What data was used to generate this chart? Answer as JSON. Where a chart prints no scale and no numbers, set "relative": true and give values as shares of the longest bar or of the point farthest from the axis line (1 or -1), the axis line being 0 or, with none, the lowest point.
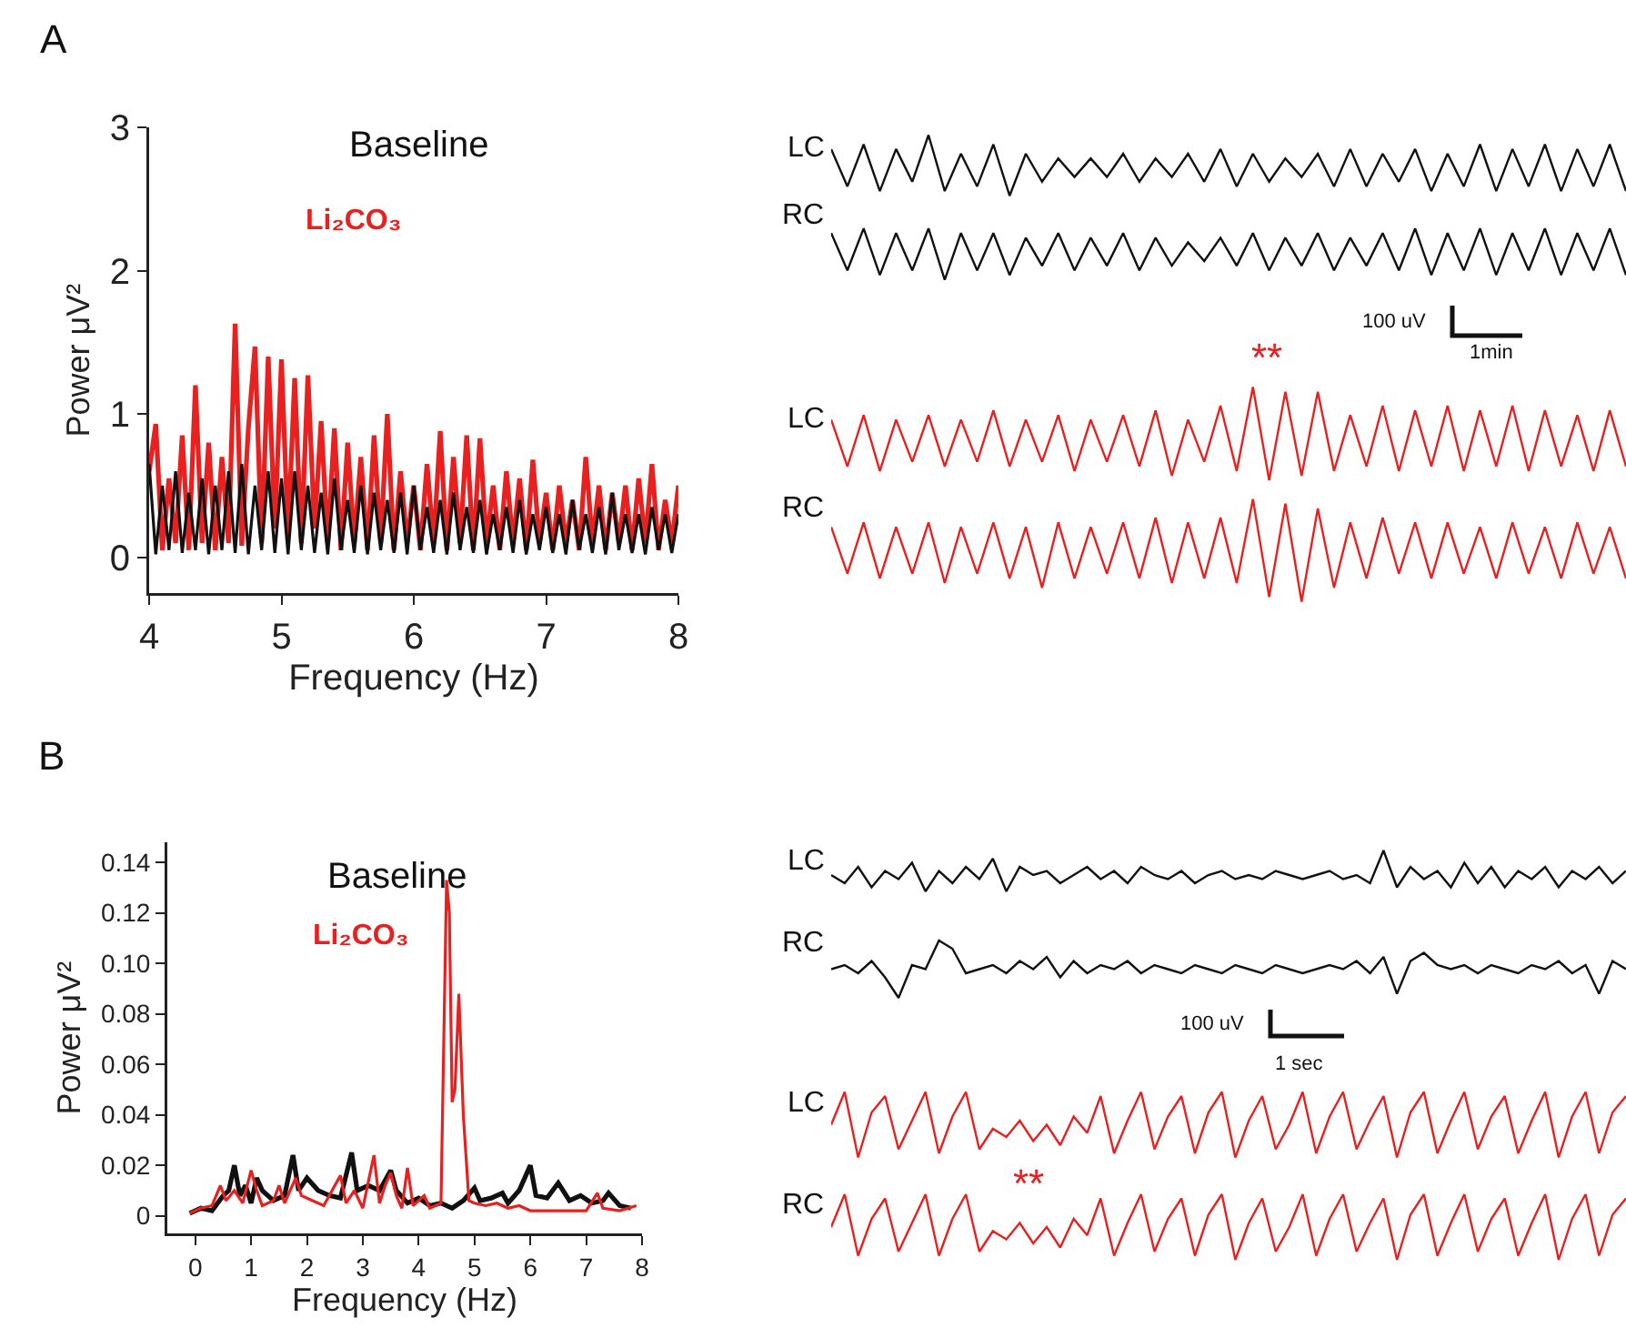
{
  "chart_data": [
    {
      "type": "line",
      "xlabel": "Frequency (Hz)",
      "ylabel": "Power μV²",
      "annotations": [
        "A"
      ],
      "x": [
        4,
        4.05,
        4.1,
        4.15,
        4.2,
        4.25,
        4.3,
        4.35,
        4.4,
        4.45,
        4.5,
        4.55,
        4.6,
        4.65,
        4.7,
        4.75,
        4.8,
        4.85,
        4.9,
        4.95,
        5,
        5.05,
        5.1,
        5.15,
        5.2,
        5.25,
        5.3,
        5.35,
        5.4,
        5.45,
        5.5,
        5.55,
        5.6,
        5.65,
        5.7,
        5.75,
        5.8,
        5.85,
        5.9,
        5.95,
        6,
        6.05,
        6.1,
        6.15,
        6.2,
        6.25,
        6.3,
        6.35,
        6.4,
        6.45,
        6.5,
        6.55,
        6.6,
        6.65,
        6.7,
        6.75,
        6.8,
        6.85,
        6.9,
        6.95,
        7,
        7.05,
        7.1,
        7.15,
        7.2,
        7.25,
        7.3,
        7.35,
        7.4,
        7.45,
        7.5,
        7.55,
        7.6,
        7.65,
        7.7,
        7.75,
        7.8,
        7.85,
        7.9,
        7.95,
        8
      ],
      "series": [
        {
          "name": "Li₂CO₃",
          "color": "#e8201f",
          "values": [
            0.6,
            0.93,
            0.05,
            0.55,
            0.1,
            0.85,
            0.05,
            1.2,
            0.1,
            0.8,
            0.05,
            0.7,
            0.1,
            1.63,
            0.08,
            0.9,
            1.47,
            0.1,
            1.4,
            0.2,
            1.38,
            0.15,
            1.25,
            0.1,
            1.27,
            0.2,
            0.95,
            0.1,
            0.9,
            0.05,
            0.8,
            0.1,
            0.7,
            0.05,
            0.85,
            0.1,
            1.0,
            0.05,
            0.6,
            0.1,
            0.5,
            0.05,
            0.65,
            0.1,
            0.88,
            0.05,
            0.7,
            0.1,
            0.85,
            0.05,
            0.83,
            0.1,
            0.5,
            0.05,
            0.6,
            0.1,
            0.55,
            0.05,
            0.68,
            0.1,
            0.45,
            0.05,
            0.5,
            0.1,
            0.4,
            0.05,
            0.7,
            0.1,
            0.5,
            0.05,
            0.45,
            0.1,
            0.5,
            0.05,
            0.55,
            0.1,
            0.65,
            0.05,
            0.4,
            0.1,
            0.5
          ]
        },
        {
          "name": "Baseline",
          "color": "#111111",
          "values": [
            0.65,
            0.02,
            0.5,
            0.05,
            0.6,
            0.03,
            0.45,
            0.05,
            0.55,
            0.02,
            0.5,
            0.05,
            0.6,
            0.03,
            0.65,
            0.02,
            0.5,
            0.05,
            0.6,
            0.03,
            0.55,
            0.02,
            0.6,
            0.05,
            0.5,
            0.03,
            0.45,
            0.02,
            0.55,
            0.05,
            0.4,
            0.03,
            0.5,
            0.02,
            0.45,
            0.05,
            0.4,
            0.03,
            0.45,
            0.02,
            0.5,
            0.05,
            0.35,
            0.03,
            0.4,
            0.02,
            0.45,
            0.05,
            0.35,
            0.03,
            0.4,
            0.02,
            0.3,
            0.05,
            0.35,
            0.03,
            0.4,
            0.02,
            0.3,
            0.05,
            0.35,
            0.03,
            0.3,
            0.02,
            0.4,
            0.05,
            0.3,
            0.03,
            0.35,
            0.02,
            0.45,
            0.05,
            0.3,
            0.03,
            0.3,
            0.02,
            0.35,
            0.05,
            0.3,
            0.03,
            0.3
          ]
        }
      ],
      "xlim": [
        4,
        8
      ],
      "xticks": [
        4,
        5,
        6,
        7,
        8
      ],
      "ylim": [
        -0.25,
        3
      ],
      "yticks": [
        0,
        1,
        2,
        3
      ],
      "grid": false,
      "legend": false
    },
    {
      "type": "line",
      "relative": true,
      "annotations": [
        "100 uV",
        "1min",
        "**"
      ],
      "categories": [
        null,
        null,
        null,
        null,
        null,
        null,
        null,
        null,
        null,
        null,
        null,
        null,
        null,
        null,
        null,
        null,
        null,
        null,
        null,
        null,
        null,
        null,
        null,
        null,
        null,
        null,
        null,
        null,
        null,
        null,
        null,
        null,
        null,
        null,
        null,
        null,
        null,
        null,
        null,
        null,
        null,
        null,
        null,
        null,
        null,
        null,
        null,
        null,
        null,
        null
      ],
      "series": [
        {
          "name": "LC",
          "color": "#111111",
          "values": [
            0.97,
            0.89,
            0.98,
            0.88,
            0.97,
            0.9,
            1,
            0.88,
            0.96,
            0.89,
            0.98,
            0.87,
            0.96,
            0.9,
            0.95,
            0.91,
            0.95,
            0.91,
            0.96,
            0.9,
            0.95,
            0.91,
            0.96,
            0.9,
            0.97,
            0.89,
            0.96,
            0.9,
            0.95,
            0.91,
            0.96,
            0.89,
            0.97,
            0.89,
            0.96,
            0.9,
            0.97,
            0.88,
            0.96,
            0.89,
            0.98,
            0.88,
            0.97,
            0.89,
            0.98,
            0.88,
            0.97,
            0.89,
            0.98,
            0.88
          ]
        },
        {
          "name": "RC",
          "color": "#111111",
          "values": [
            0.79,
            0.71,
            0.8,
            0.7,
            0.79,
            0.71,
            0.8,
            0.69,
            0.79,
            0.71,
            0.79,
            0.7,
            0.78,
            0.72,
            0.79,
            0.71,
            0.78,
            0.72,
            0.79,
            0.71,
            0.78,
            0.72,
            0.77,
            0.73,
            0.78,
            0.72,
            0.79,
            0.71,
            0.78,
            0.72,
            0.79,
            0.71,
            0.78,
            0.72,
            0.79,
            0.71,
            0.8,
            0.7,
            0.79,
            0.71,
            0.8,
            0.7,
            0.79,
            0.71,
            0.8,
            0.7,
            0.79,
            0.71,
            0.8,
            0.7
          ]
        },
        {
          "name": "LC",
          "color": "#e8201f",
          "values": [
            0.39,
            0.29,
            0.4,
            0.28,
            0.39,
            0.3,
            0.4,
            0.29,
            0.39,
            0.3,
            0.41,
            0.29,
            0.39,
            0.3,
            0.4,
            0.28,
            0.39,
            0.3,
            0.4,
            0.29,
            0.41,
            0.27,
            0.39,
            0.3,
            0.42,
            0.28,
            0.46,
            0.26,
            0.45,
            0.27,
            0.45,
            0.28,
            0.4,
            0.29,
            0.42,
            0.28,
            0.41,
            0.29,
            0.42,
            0.28,
            0.41,
            0.29,
            0.42,
            0.28,
            0.41,
            0.29,
            0.4,
            0.28,
            0.41,
            0.29
          ]
        },
        {
          "name": "RC",
          "color": "#e8201f",
          "values": [
            0.16,
            0.06,
            0.17,
            0.05,
            0.16,
            0.06,
            0.17,
            0.04,
            0.16,
            0.06,
            0.17,
            0.05,
            0.16,
            0.03,
            0.17,
            0.05,
            0.16,
            0.06,
            0.17,
            0.05,
            0.18,
            0.04,
            0.17,
            0.05,
            0.18,
            0.04,
            0.22,
            0.01,
            0.21,
            0,
            0.2,
            0.03,
            0.17,
            0.05,
            0.18,
            0.06,
            0.17,
            0.05,
            0.17,
            0.06,
            0.16,
            0.05,
            0.17,
            0.06,
            0.16,
            0.05,
            0.17,
            0.06,
            0.16,
            0.05
          ]
        }
      ],
      "grid": false,
      "legend": false
    },
    {
      "type": "line",
      "xlabel": "Frequency (Hz)",
      "ylabel": "Power μV²",
      "annotations": [
        "B"
      ],
      "series": [
        {
          "name": "Baseline",
          "color": "#111111",
          "x": [
            -0.1,
            0.1,
            0.3,
            0.5,
            0.6,
            0.7,
            0.8,
            0.9,
            1.0,
            1.1,
            1.2,
            1.4,
            1.6,
            1.75,
            1.85,
            2.0,
            2.2,
            2.4,
            2.6,
            2.8,
            2.9,
            3.1,
            3.3,
            3.5,
            3.6,
            3.8,
            4.0,
            4.2,
            4.4,
            4.6,
            4.8,
            5.0,
            5.1,
            5.3,
            5.5,
            5.6,
            5.8,
            6.0,
            6.1,
            6.3,
            6.5,
            6.7,
            6.9,
            7.1,
            7.3,
            7.4,
            7.6,
            7.8
          ],
          "values": [
            0.001,
            0.003,
            0.002,
            0.008,
            0.01,
            0.02,
            0.008,
            0.012,
            0.005,
            0.015,
            0.01,
            0.006,
            0.008,
            0.024,
            0.01,
            0.015,
            0.01,
            0.008,
            0.007,
            0.025,
            0.01,
            0.012,
            0.01,
            0.018,
            0.01,
            0.005,
            0.007,
            0.004,
            0.005,
            0.003,
            0.006,
            0.011,
            0.006,
            0.007,
            0.009,
            0.005,
            0.01,
            0.02,
            0.008,
            0.007,
            0.013,
            0.006,
            0.008,
            0.005,
            0.006,
            0.009,
            0.004,
            0.003
          ]
        },
        {
          "name": "Li₂CO₃",
          "color": "#e8201f",
          "x": [
            -0.1,
            0.1,
            0.3,
            0.45,
            0.55,
            0.7,
            0.85,
            1.0,
            1.1,
            1.2,
            1.4,
            1.5,
            1.6,
            1.8,
            1.9,
            2.1,
            2.3,
            2.5,
            2.6,
            2.7,
            2.85,
            3.0,
            3.2,
            3.3,
            3.4,
            3.5,
            3.6,
            3.7,
            3.8,
            3.9,
            4.1,
            4.2,
            4.4,
            4.5,
            4.55,
            4.6,
            4.65,
            4.72,
            4.8,
            4.9,
            5.0,
            5.2,
            5.4,
            5.6,
            5.8,
            6.0,
            6.5,
            7.0,
            7.2,
            7.3,
            7.6,
            7.9
          ],
          "values": [
            0.001,
            0.003,
            0.004,
            0.012,
            0.006,
            0.01,
            0.005,
            0.018,
            0.01,
            0.004,
            0.006,
            0.012,
            0.005,
            0.015,
            0.008,
            0.006,
            0.004,
            0.012,
            0.016,
            0.005,
            0.01,
            0.003,
            0.024,
            0.005,
            0.012,
            0.017,
            0.008,
            0.003,
            0.019,
            0.004,
            0.008,
            0.003,
            0.005,
            0.133,
            0.12,
            0.045,
            0.05,
            0.088,
            0.04,
            0.006,
            0.005,
            0.004,
            0.005,
            0.003,
            0.004,
            0.002,
            0.002,
            0.002,
            0.009,
            0.003,
            0.002,
            0.004
          ]
        }
      ],
      "xlim": [
        -0.5,
        8
      ],
      "xticks": [
        0,
        1,
        2,
        3,
        4,
        5,
        6,
        7,
        8
      ],
      "ylim": [
        -0.007,
        0.148
      ],
      "yticks": [
        0,
        {
          "value": 0.02,
          "label": "0.02"
        },
        {
          "value": 0.04,
          "label": "0.04"
        },
        {
          "value": 0.06,
          "label": "0.06"
        },
        {
          "value": 0.08,
          "label": "0.08"
        },
        {
          "value": 0.1,
          "label": "0.10"
        },
        {
          "value": 0.12,
          "label": "0.12"
        },
        {
          "value": 0.14,
          "label": "0.14"
        }
      ],
      "grid": false,
      "legend": false
    },
    {
      "type": "line",
      "relative": true,
      "annotations": [
        "100 uV",
        "1 sec",
        "**"
      ],
      "categories": [
        null,
        null,
        null,
        null,
        null,
        null,
        null,
        null,
        null,
        null,
        null,
        null,
        null,
        null,
        null,
        null,
        null,
        null,
        null,
        null,
        null,
        null,
        null,
        null,
        null,
        null,
        null,
        null,
        null,
        null,
        null,
        null,
        null,
        null,
        null,
        null,
        null,
        null,
        null,
        null,
        null,
        null,
        null,
        null,
        null,
        null,
        null,
        null,
        null,
        null,
        null,
        null,
        null,
        null,
        null,
        null,
        null,
        null,
        null,
        null
      ],
      "series": [
        {
          "name": "LC",
          "color": "#111111",
          "values": [
            0.94,
            0.92,
            0.96,
            0.91,
            0.95,
            0.93,
            0.97,
            0.9,
            0.95,
            0.92,
            0.96,
            0.93,
            0.98,
            0.9,
            0.96,
            0.94,
            0.95,
            0.92,
            0.94,
            0.96,
            0.93,
            0.95,
            0.92,
            0.96,
            0.94,
            0.93,
            0.95,
            0.92,
            0.94,
            0.95,
            0.93,
            0.94,
            0.93,
            0.95,
            0.94,
            0.93,
            0.94,
            0.95,
            0.93,
            0.94,
            0.92,
            1,
            0.91,
            0.96,
            0.93,
            0.95,
            0.91,
            0.97,
            0.92,
            0.96,
            0.91,
            0.95,
            0.93,
            0.96,
            0.91,
            0.95,
            0.93,
            0.96,
            0.92,
            0.95
          ]
        },
        {
          "name": "RC",
          "color": "#111111",
          "values": [
            0.71,
            0.72,
            0.7,
            0.73,
            0.69,
            0.64,
            0.72,
            0.71,
            0.78,
            0.76,
            0.7,
            0.71,
            0.72,
            0.7,
            0.73,
            0.71,
            0.74,
            0.69,
            0.73,
            0.7,
            0.72,
            0.71,
            0.73,
            0.7,
            0.72,
            0.71,
            0.7,
            0.72,
            0.71,
            0.7,
            0.72,
            0.71,
            0.7,
            0.72,
            0.71,
            0.7,
            0.71,
            0.72,
            0.71,
            0.73,
            0.7,
            0.74,
            0.65,
            0.73,
            0.75,
            0.72,
            0.71,
            0.72,
            0.7,
            0.72,
            0.71,
            0.7,
            0.72,
            0.71,
            0.73,
            0.7,
            0.72,
            0.65,
            0.73,
            0.71
          ]
        },
        {
          "name": "LC",
          "color": "#e8201f",
          "values": [
            0.33,
            0.41,
            0.25,
            0.36,
            0.4,
            0.27,
            0.34,
            0.41,
            0.26,
            0.35,
            0.41,
            0.27,
            0.32,
            0.3,
            0.34,
            0.29,
            0.33,
            0.28,
            0.35,
            0.31,
            0.4,
            0.26,
            0.34,
            0.41,
            0.27,
            0.35,
            0.4,
            0.26,
            0.36,
            0.41,
            0.25,
            0.34,
            0.4,
            0.27,
            0.33,
            0.41,
            0.26,
            0.35,
            0.41,
            0.27,
            0.34,
            0.4,
            0.25,
            0.36,
            0.41,
            0.26,
            0.34,
            0.41,
            0.27,
            0.35,
            0.4,
            0.26,
            0.34,
            0.41,
            0.25,
            0.35,
            0.41,
            0.26,
            0.36,
            0.4
          ]
        },
        {
          "name": "RC",
          "color": "#e8201f",
          "values": [
            0.08,
            0.16,
            0.01,
            0.1,
            0.15,
            0.02,
            0.09,
            0.16,
            0.01,
            0.1,
            0.16,
            0.02,
            0.07,
            0.05,
            0.09,
            0.04,
            0.08,
            0.03,
            0.1,
            0.06,
            0.15,
            0.01,
            0.09,
            0.16,
            0.02,
            0.1,
            0.15,
            0.01,
            0.11,
            0.16,
            0,
            0.09,
            0.15,
            0.02,
            0.08,
            0.16,
            0.01,
            0.1,
            0.16,
            0.02,
            0.09,
            0.15,
            0,
            0.11,
            0.16,
            0.01,
            0.09,
            0.16,
            0.02,
            0.1,
            0.15,
            0.01,
            0.09,
            0.16,
            0,
            0.1,
            0.16,
            0.01,
            0.11,
            0.15
          ]
        }
      ],
      "grid": false,
      "legend": false
    }
  ]
}
